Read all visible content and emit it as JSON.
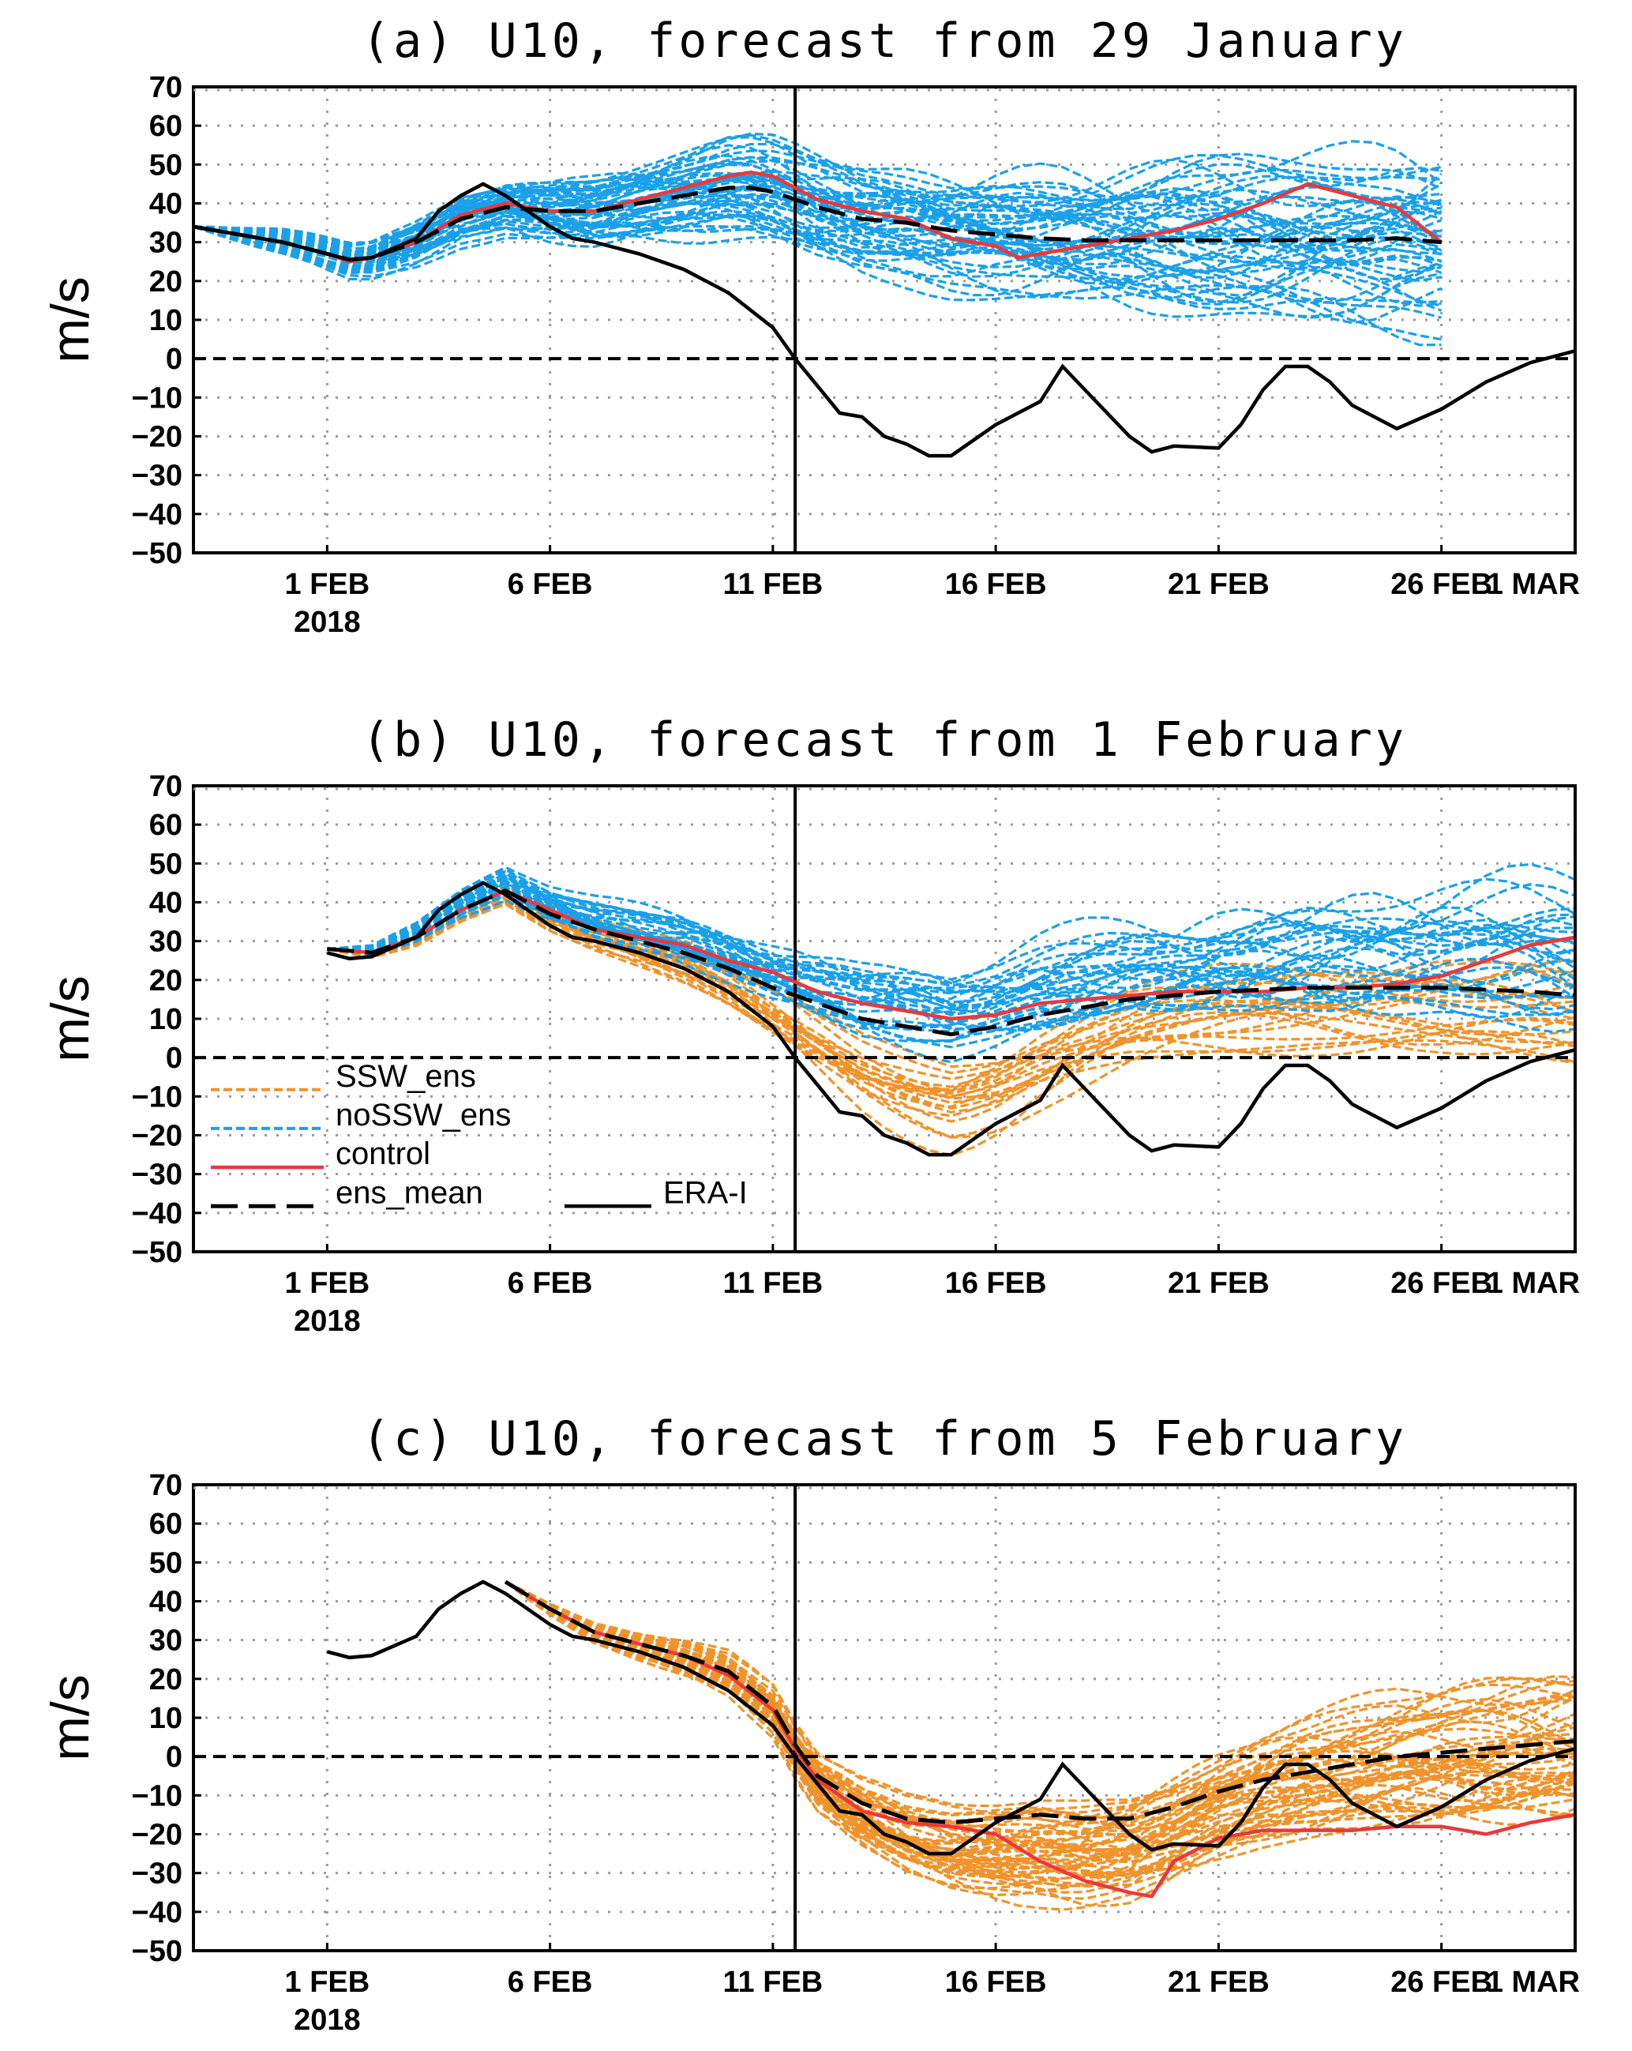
{
  "figure": {
    "colors": {
      "ssw": "#f0932b",
      "nossw": "#1aa0ea",
      "control": "#e8393c",
      "mean": "#000000",
      "era": "#000000"
    }
  },
  "chart_data": [
    {
      "type": "line",
      "title": "(a) U10, forecast from 29 January",
      "ylabel": "m/s",
      "ylim": [
        -50,
        70
      ],
      "yticks": [
        70,
        60,
        50,
        40,
        30,
        20,
        10,
        0,
        -10,
        -20,
        -30,
        -40,
        -50
      ],
      "xlim": [
        -3,
        28
      ],
      "xticks": [
        {
          "day": 0,
          "label": "1 FEB",
          "sub": "2018"
        },
        {
          "day": 5,
          "label": "6 FEB"
        },
        {
          "day": 10,
          "label": "11 FEB"
        },
        {
          "day": 15,
          "label": "16 FEB"
        },
        {
          "day": 20,
          "label": "21 FEB"
        },
        {
          "day": 25,
          "label": "26 FEB"
        },
        {
          "day": 28,
          "label": "1 MAR"
        }
      ],
      "ssw_day": 10.5,
      "ensemble": {
        "start": -3,
        "end": 25,
        "count_ssw": 0,
        "count_nossw": 50
      },
      "era_i": [
        [
          -3,
          34
        ],
        [
          -2,
          32
        ],
        [
          -1,
          30
        ],
        [
          0,
          27
        ],
        [
          0.5,
          25.5
        ],
        [
          1,
          26
        ],
        [
          2,
          31
        ],
        [
          2.5,
          38
        ],
        [
          3,
          42
        ],
        [
          3.5,
          45
        ],
        [
          4,
          42
        ],
        [
          5,
          34
        ],
        [
          5.5,
          31
        ],
        [
          6,
          30
        ],
        [
          7,
          27
        ],
        [
          8,
          23
        ],
        [
          9,
          17
        ],
        [
          10,
          8
        ],
        [
          10.5,
          0
        ],
        [
          11,
          -7
        ],
        [
          11.5,
          -14
        ],
        [
          12,
          -15
        ],
        [
          12.5,
          -20
        ],
        [
          13,
          -22
        ],
        [
          13.5,
          -25
        ],
        [
          14,
          -25
        ],
        [
          15,
          -17
        ],
        [
          16,
          -11
        ],
        [
          16.5,
          -2
        ],
        [
          17,
          -8
        ],
        [
          18,
          -20
        ],
        [
          18.5,
          -24
        ],
        [
          19,
          -22.5
        ],
        [
          20,
          -23
        ],
        [
          20.5,
          -17
        ],
        [
          21,
          -8
        ],
        [
          21.5,
          -2
        ],
        [
          22,
          -2
        ],
        [
          22.5,
          -6
        ],
        [
          23,
          -12
        ],
        [
          24,
          -18
        ],
        [
          25,
          -13
        ],
        [
          26,
          -6
        ],
        [
          27,
          -1
        ],
        [
          28,
          2
        ]
      ],
      "control": [
        [
          -3,
          34
        ],
        [
          -2,
          32
        ],
        [
          -1,
          30
        ],
        [
          0,
          27
        ],
        [
          0.5,
          25
        ],
        [
          1,
          26
        ],
        [
          2,
          30
        ],
        [
          3,
          37
        ],
        [
          4,
          40
        ],
        [
          5,
          38
        ],
        [
          6,
          38
        ],
        [
          7,
          41
        ],
        [
          8,
          44
        ],
        [
          9,
          47
        ],
        [
          9.5,
          48
        ],
        [
          10,
          47
        ],
        [
          11,
          41
        ],
        [
          12,
          38
        ],
        [
          13,
          36
        ],
        [
          14,
          31
        ],
        [
          15,
          29
        ],
        [
          15.5,
          26
        ],
        [
          16,
          27
        ],
        [
          17,
          29
        ],
        [
          18,
          31
        ],
        [
          19,
          33
        ],
        [
          20,
          36
        ],
        [
          21,
          40
        ],
        [
          22,
          45
        ],
        [
          23,
          42
        ],
        [
          24,
          39
        ],
        [
          25,
          30
        ]
      ],
      "ens_mean": [
        [
          -3,
          34
        ],
        [
          -2,
          32
        ],
        [
          -1,
          30
        ],
        [
          0,
          27
        ],
        [
          0.5,
          25.5
        ],
        [
          1,
          26
        ],
        [
          2,
          30
        ],
        [
          3,
          36
        ],
        [
          4,
          39
        ],
        [
          5,
          38
        ],
        [
          6,
          38
        ],
        [
          7,
          40
        ],
        [
          8,
          42
        ],
        [
          9,
          44
        ],
        [
          9.5,
          44
        ],
        [
          10,
          43
        ],
        [
          11,
          39
        ],
        [
          12,
          36
        ],
        [
          13,
          35
        ],
        [
          14,
          33
        ],
        [
          15,
          32
        ],
        [
          16,
          31
        ],
        [
          17,
          30.5
        ],
        [
          18,
          30.5
        ],
        [
          19,
          30.5
        ],
        [
          20,
          30.5
        ],
        [
          21,
          30.5
        ],
        [
          22,
          30.5
        ],
        [
          23,
          30.5
        ],
        [
          24,
          31
        ],
        [
          25,
          30
        ]
      ],
      "legend": null
    },
    {
      "type": "line",
      "title": "(b) U10, forecast from 1 February",
      "ylabel": "m/s",
      "ylim": [
        -50,
        70
      ],
      "yticks": [
        70,
        60,
        50,
        40,
        30,
        20,
        10,
        0,
        -10,
        -20,
        -30,
        -40,
        -50
      ],
      "xlim": [
        -3,
        28
      ],
      "xticks": [
        {
          "day": 0,
          "label": "1 FEB",
          "sub": "2018"
        },
        {
          "day": 5,
          "label": "6 FEB"
        },
        {
          "day": 10,
          "label": "11 FEB"
        },
        {
          "day": 15,
          "label": "16 FEB"
        },
        {
          "day": 20,
          "label": "21 FEB"
        },
        {
          "day": 25,
          "label": "26 FEB"
        },
        {
          "day": 28,
          "label": "1 MAR"
        }
      ],
      "ssw_day": 10.5,
      "ensemble": {
        "start": 0,
        "end": 28,
        "count_ssw": 20,
        "count_nossw": 30
      },
      "era_i": [
        [
          0,
          27
        ],
        [
          0.5,
          25.5
        ],
        [
          1,
          26
        ],
        [
          2,
          31
        ],
        [
          2.5,
          38
        ],
        [
          3,
          42
        ],
        [
          3.5,
          45
        ],
        [
          4,
          42
        ],
        [
          5,
          34
        ],
        [
          5.5,
          31
        ],
        [
          6,
          30
        ],
        [
          7,
          27
        ],
        [
          8,
          23
        ],
        [
          9,
          17
        ],
        [
          10,
          8
        ],
        [
          10.5,
          0
        ],
        [
          11,
          -7
        ],
        [
          11.5,
          -14
        ],
        [
          12,
          -15
        ],
        [
          12.5,
          -20
        ],
        [
          13,
          -22
        ],
        [
          13.5,
          -25
        ],
        [
          14,
          -25
        ],
        [
          15,
          -17
        ],
        [
          16,
          -11
        ],
        [
          16.5,
          -2
        ],
        [
          17,
          -8
        ],
        [
          18,
          -20
        ],
        [
          18.5,
          -24
        ],
        [
          19,
          -22.5
        ],
        [
          20,
          -23
        ],
        [
          20.5,
          -17
        ],
        [
          21,
          -8
        ],
        [
          21.5,
          -2
        ],
        [
          22,
          -2
        ],
        [
          22.5,
          -6
        ],
        [
          23,
          -12
        ],
        [
          24,
          -18
        ],
        [
          25,
          -13
        ],
        [
          26,
          -6
        ],
        [
          27,
          -1
        ],
        [
          28,
          2
        ]
      ],
      "control": [
        [
          0,
          28
        ],
        [
          1,
          27
        ],
        [
          2,
          31
        ],
        [
          3,
          38
        ],
        [
          4,
          43
        ],
        [
          5,
          38
        ],
        [
          6,
          33
        ],
        [
          7,
          31
        ],
        [
          8,
          29
        ],
        [
          9,
          25
        ],
        [
          10,
          22
        ],
        [
          11,
          17
        ],
        [
          12,
          14
        ],
        [
          13,
          12
        ],
        [
          14,
          10
        ],
        [
          15,
          11
        ],
        [
          16,
          14
        ],
        [
          17,
          15
        ],
        [
          18,
          16
        ],
        [
          19,
          17
        ],
        [
          20,
          17
        ],
        [
          21,
          17
        ],
        [
          22,
          18
        ],
        [
          23,
          18
        ],
        [
          24,
          19
        ],
        [
          25,
          21
        ],
        [
          26,
          25
        ],
        [
          27,
          29
        ],
        [
          28,
          31
        ]
      ],
      "ens_mean": [
        [
          0,
          28
        ],
        [
          1,
          27
        ],
        [
          2,
          31
        ],
        [
          3,
          38
        ],
        [
          4,
          43
        ],
        [
          5,
          37
        ],
        [
          6,
          33
        ],
        [
          7,
          30
        ],
        [
          8,
          27
        ],
        [
          9,
          23
        ],
        [
          10,
          18
        ],
        [
          11,
          14
        ],
        [
          12,
          10
        ],
        [
          13,
          8
        ],
        [
          14,
          6
        ],
        [
          15,
          8
        ],
        [
          16,
          11
        ],
        [
          17,
          13
        ],
        [
          18,
          15
        ],
        [
          19,
          16
        ],
        [
          20,
          17
        ],
        [
          21,
          17.5
        ],
        [
          22,
          18
        ],
        [
          23,
          18
        ],
        [
          24,
          18
        ],
        [
          25,
          18
        ],
        [
          26,
          17.5
        ],
        [
          27,
          17
        ],
        [
          28,
          16
        ]
      ],
      "legend": {
        "entries": [
          {
            "key": "ssw",
            "label": "SSW_ens"
          },
          {
            "key": "nossw",
            "label": "noSSW_ens"
          },
          {
            "key": "control",
            "label": "control"
          },
          {
            "key": "mean",
            "label": "ens_mean"
          },
          {
            "key": "era",
            "label": "ERA-I"
          }
        ]
      }
    },
    {
      "type": "line",
      "title": "(c) U10, forecast from 5 February",
      "ylabel": "m/s",
      "ylim": [
        -50,
        70
      ],
      "yticks": [
        70,
        60,
        50,
        40,
        30,
        20,
        10,
        0,
        -10,
        -20,
        -30,
        -40,
        -50
      ],
      "xlim": [
        -3,
        28
      ],
      "xticks": [
        {
          "day": 0,
          "label": "1 FEB",
          "sub": "2018"
        },
        {
          "day": 5,
          "label": "6 FEB"
        },
        {
          "day": 10,
          "label": "11 FEB"
        },
        {
          "day": 15,
          "label": "16 FEB"
        },
        {
          "day": 20,
          "label": "21 FEB"
        },
        {
          "day": 25,
          "label": "26 FEB"
        },
        {
          "day": 28,
          "label": "1 MAR"
        }
      ],
      "ssw_day": 10.5,
      "ensemble": {
        "start": 4,
        "end": 28,
        "count_ssw": 50,
        "count_nossw": 0
      },
      "era_i": [
        [
          0,
          27
        ],
        [
          0.5,
          25.5
        ],
        [
          1,
          26
        ],
        [
          2,
          31
        ],
        [
          2.5,
          38
        ],
        [
          3,
          42
        ],
        [
          3.5,
          45
        ],
        [
          4,
          42
        ],
        [
          5,
          34
        ],
        [
          5.5,
          31
        ],
        [
          6,
          30
        ],
        [
          7,
          27
        ],
        [
          8,
          23
        ],
        [
          9,
          17
        ],
        [
          10,
          8
        ],
        [
          10.5,
          0
        ],
        [
          11,
          -7
        ],
        [
          11.5,
          -14
        ],
        [
          12,
          -15
        ],
        [
          12.5,
          -20
        ],
        [
          13,
          -22
        ],
        [
          13.5,
          -25
        ],
        [
          14,
          -25
        ],
        [
          15,
          -17
        ],
        [
          16,
          -11
        ],
        [
          16.5,
          -2
        ],
        [
          17,
          -8
        ],
        [
          18,
          -20
        ],
        [
          18.5,
          -24
        ],
        [
          19,
          -22.5
        ],
        [
          20,
          -23
        ],
        [
          20.5,
          -17
        ],
        [
          21,
          -8
        ],
        [
          21.5,
          -2
        ],
        [
          22,
          -2
        ],
        [
          22.5,
          -6
        ],
        [
          23,
          -12
        ],
        [
          24,
          -18
        ],
        [
          25,
          -13
        ],
        [
          26,
          -6
        ],
        [
          27,
          -1
        ],
        [
          28,
          2
        ]
      ],
      "control": [
        [
          4,
          45
        ],
        [
          5,
          38
        ],
        [
          6,
          32
        ],
        [
          7,
          29
        ],
        [
          8,
          26
        ],
        [
          9,
          21
        ],
        [
          10,
          12
        ],
        [
          10.5,
          2
        ],
        [
          11,
          -6
        ],
        [
          12,
          -14
        ],
        [
          13,
          -17
        ],
        [
          14,
          -18
        ],
        [
          15,
          -20
        ],
        [
          16,
          -27
        ],
        [
          17,
          -32
        ],
        [
          18,
          -35
        ],
        [
          18.5,
          -36
        ],
        [
          19,
          -27
        ],
        [
          20,
          -21
        ],
        [
          21,
          -19
        ],
        [
          22,
          -19
        ],
        [
          23,
          -19
        ],
        [
          24,
          -18
        ],
        [
          25,
          -18
        ],
        [
          26,
          -20
        ],
        [
          27,
          -17
        ],
        [
          28,
          -15
        ]
      ],
      "ens_mean": [
        [
          4,
          45
        ],
        [
          5,
          38
        ],
        [
          6,
          32
        ],
        [
          7,
          29
        ],
        [
          8,
          26
        ],
        [
          9,
          22
        ],
        [
          10,
          13
        ],
        [
          10.5,
          3
        ],
        [
          11,
          -5
        ],
        [
          12,
          -12
        ],
        [
          13,
          -16
        ],
        [
          14,
          -17
        ],
        [
          15,
          -16
        ],
        [
          16,
          -15
        ],
        [
          17,
          -16
        ],
        [
          18,
          -16
        ],
        [
          19,
          -13
        ],
        [
          20,
          -9
        ],
        [
          21,
          -6
        ],
        [
          22,
          -4
        ],
        [
          23,
          -2
        ],
        [
          24,
          0
        ],
        [
          25,
          1
        ],
        [
          26,
          2
        ],
        [
          27,
          3
        ],
        [
          28,
          4
        ]
      ],
      "legend": null
    }
  ]
}
